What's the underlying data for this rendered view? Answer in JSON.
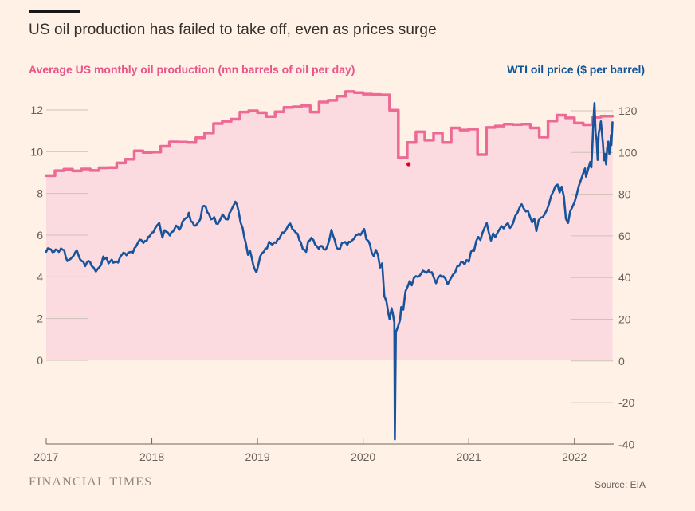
{
  "header": {
    "title": "US oil production has failed to take off, even as prices surge"
  },
  "legend": {
    "left_label": "Average US monthly oil production (mn barrels of oil per day)",
    "right_label": "WTI oil price ($ per barrel)"
  },
  "footer": {
    "brand": "FINANCIAL TIMES",
    "source_prefix": "Source:",
    "source_link": "EIA"
  },
  "colors": {
    "background": "#fff1e5",
    "title_text": "#33302e",
    "production_line": "#ed6a95",
    "production_fill": "#fbdbe0",
    "production_label": "#ea5488",
    "wti_line": "#17549c",
    "wti_label": "#0d549b",
    "axis_text": "#66605b",
    "axis_line": "#6e6860",
    "tick_stub": "#cdc2b6",
    "annotation_dot": "#e00014"
  },
  "chart_data": {
    "type": "line",
    "title": "US oil production has failed to take off, even as prices surge",
    "legend_position": "top",
    "grid": "edge-stubs-only",
    "x_axis": {
      "years": [
        2017,
        2018,
        2019,
        2020,
        2021,
        2022
      ],
      "range": [
        2017,
        2022.37
      ]
    },
    "y_axis_left": {
      "label": "Average US monthly oil production (mn barrels of oil per day)",
      "ticks": [
        0,
        2,
        4,
        6,
        8,
        10,
        12
      ],
      "range": [
        0,
        12.9
      ]
    },
    "y_axis_right": {
      "label": "WTI oil price ($ per barrel)",
      "ticks": [
        -40,
        -20,
        0,
        20,
        40,
        60,
        80,
        100,
        120
      ],
      "range": [
        -40,
        124
      ]
    },
    "annotation_dot": {
      "x": 2020.43,
      "value_left_axis": 9.4
    },
    "series": [
      {
        "name": "Average US monthly oil production (mn barrels of oil per day)",
        "type": "step-area",
        "axis": "left",
        "start_year": 2017,
        "end_year_fraction": 2022.36,
        "monthly_values": [
          8.85,
          9.09,
          9.16,
          9.08,
          9.17,
          9.1,
          9.23,
          9.24,
          9.46,
          9.64,
          10.04,
          9.96,
          9.98,
          10.26,
          10.47,
          10.46,
          10.44,
          10.67,
          10.9,
          11.35,
          11.46,
          11.56,
          11.9,
          11.96,
          11.87,
          11.68,
          11.91,
          12.12,
          12.15,
          12.2,
          11.9,
          12.38,
          12.46,
          12.66,
          12.88,
          12.83,
          12.76,
          12.74,
          12.72,
          11.99,
          9.71,
          10.44,
          10.95,
          10.55,
          10.9,
          10.44,
          11.14,
          11.04,
          11.08,
          9.86,
          11.16,
          11.23,
          11.32,
          11.3,
          11.32,
          11.14,
          10.7,
          11.47,
          11.75,
          11.62,
          11.37,
          11.29,
          11.65,
          11.7,
          11.7
        ]
      },
      {
        "name": "WTI oil price ($ per barrel)",
        "type": "line",
        "axis": "right",
        "points": [
          [
            2017.0,
            52.4
          ],
          [
            2017.03,
            53.8
          ],
          [
            2017.06,
            52.2
          ],
          [
            2017.09,
            53.5
          ],
          [
            2017.12,
            52.3
          ],
          [
            2017.14,
            54.0
          ],
          [
            2017.17,
            53.2
          ],
          [
            2017.2,
            47.9
          ],
          [
            2017.23,
            48.9
          ],
          [
            2017.26,
            50.6
          ],
          [
            2017.29,
            53.1
          ],
          [
            2017.32,
            48.8
          ],
          [
            2017.35,
            47.7
          ],
          [
            2017.37,
            45.5
          ],
          [
            2017.4,
            48.0
          ],
          [
            2017.43,
            45.6
          ],
          [
            2017.45,
            44.7
          ],
          [
            2017.47,
            42.9
          ],
          [
            2017.49,
            44.3
          ],
          [
            2017.52,
            46.1
          ],
          [
            2017.54,
            50.1
          ],
          [
            2017.57,
            49.6
          ],
          [
            2017.59,
            46.8
          ],
          [
            2017.62,
            48.6
          ],
          [
            2017.65,
            47.4
          ],
          [
            2017.68,
            47.2
          ],
          [
            2017.7,
            49.9
          ],
          [
            2017.73,
            51.9
          ],
          [
            2017.76,
            50.7
          ],
          [
            2017.79,
            52.2
          ],
          [
            2017.82,
            51.9
          ],
          [
            2017.85,
            54.9
          ],
          [
            2017.87,
            56.9
          ],
          [
            2017.9,
            58.0
          ],
          [
            2017.92,
            56.6
          ],
          [
            2017.95,
            57.4
          ],
          [
            2017.98,
            59.9
          ],
          [
            2018.0,
            61.6
          ],
          [
            2018.03,
            63.6
          ],
          [
            2018.07,
            66.2
          ],
          [
            2018.1,
            59.2
          ],
          [
            2018.12,
            62.7
          ],
          [
            2018.15,
            61.7
          ],
          [
            2018.17,
            60.2
          ],
          [
            2018.2,
            62.1
          ],
          [
            2018.23,
            64.9
          ],
          [
            2018.26,
            62.9
          ],
          [
            2018.29,
            66.8
          ],
          [
            2018.32,
            68.5
          ],
          [
            2018.35,
            71.1
          ],
          [
            2018.37,
            66.9
          ],
          [
            2018.4,
            64.9
          ],
          [
            2018.43,
            65.9
          ],
          [
            2018.46,
            68.2
          ],
          [
            2018.48,
            74.1
          ],
          [
            2018.51,
            73.9
          ],
          [
            2018.54,
            70.5
          ],
          [
            2018.56,
            67.9
          ],
          [
            2018.59,
            69.0
          ],
          [
            2018.61,
            65.9
          ],
          [
            2018.64,
            67.1
          ],
          [
            2018.67,
            70.3
          ],
          [
            2018.7,
            68.0
          ],
          [
            2018.72,
            67.9
          ],
          [
            2018.75,
            72.2
          ],
          [
            2018.77,
            74.3
          ],
          [
            2018.79,
            76.4
          ],
          [
            2018.82,
            72.1
          ],
          [
            2018.84,
            66.4
          ],
          [
            2018.86,
            63.7
          ],
          [
            2018.89,
            56.4
          ],
          [
            2018.91,
            50.9
          ],
          [
            2018.93,
            52.7
          ],
          [
            2018.96,
            45.9
          ],
          [
            2018.99,
            42.5
          ],
          [
            2019.01,
            46.5
          ],
          [
            2019.04,
            51.6
          ],
          [
            2019.06,
            52.4
          ],
          [
            2019.09,
            54.0
          ],
          [
            2019.11,
            57.2
          ],
          [
            2019.14,
            55.8
          ],
          [
            2019.16,
            56.9
          ],
          [
            2019.19,
            58.3
          ],
          [
            2019.22,
            60.1
          ],
          [
            2019.25,
            61.6
          ],
          [
            2019.28,
            63.9
          ],
          [
            2019.31,
            65.9
          ],
          [
            2019.33,
            63.3
          ],
          [
            2019.36,
            61.7
          ],
          [
            2019.38,
            61.0
          ],
          [
            2019.41,
            56.9
          ],
          [
            2019.43,
            53.5
          ],
          [
            2019.46,
            52.3
          ],
          [
            2019.48,
            57.4
          ],
          [
            2019.51,
            59.1
          ],
          [
            2019.53,
            57.9
          ],
          [
            2019.56,
            55.2
          ],
          [
            2019.58,
            53.8
          ],
          [
            2019.61,
            55.1
          ],
          [
            2019.63,
            53.5
          ],
          [
            2019.66,
            54.9
          ],
          [
            2019.68,
            58.1
          ],
          [
            2019.7,
            62.9
          ],
          [
            2019.73,
            58.1
          ],
          [
            2019.75,
            54.2
          ],
          [
            2019.78,
            53.8
          ],
          [
            2019.8,
            56.7
          ],
          [
            2019.83,
            57.1
          ],
          [
            2019.85,
            55.7
          ],
          [
            2019.88,
            57.0
          ],
          [
            2019.9,
            58.1
          ],
          [
            2019.93,
            60.4
          ],
          [
            2019.96,
            61.1
          ],
          [
            2019.99,
            61.7
          ],
          [
            2020.01,
            63.3
          ],
          [
            2020.03,
            58.4
          ],
          [
            2020.05,
            57.5
          ],
          [
            2020.08,
            52.1
          ],
          [
            2020.1,
            50.3
          ],
          [
            2020.12,
            53.3
          ],
          [
            2020.14,
            50.9
          ],
          [
            2020.16,
            44.8
          ],
          [
            2020.18,
            46.8
          ],
          [
            2020.2,
            31.1
          ],
          [
            2020.22,
            28.7
          ],
          [
            2020.24,
            22.4
          ],
          [
            2020.25,
            20.1
          ],
          [
            2020.27,
            25.3
          ],
          [
            2020.28,
            22.8
          ],
          [
            2020.295,
            18.3
          ],
          [
            2020.3,
            -37.6
          ],
          [
            2020.31,
            13.8
          ],
          [
            2020.33,
            16.5
          ],
          [
            2020.35,
            19.7
          ],
          [
            2020.36,
            25.8
          ],
          [
            2020.38,
            24.6
          ],
          [
            2020.4,
            33.3
          ],
          [
            2020.42,
            35.5
          ],
          [
            2020.44,
            38.3
          ],
          [
            2020.46,
            36.3
          ],
          [
            2020.48,
            39.8
          ],
          [
            2020.5,
            40.7
          ],
          [
            2020.53,
            40.6
          ],
          [
            2020.55,
            41.9
          ],
          [
            2020.58,
            42.9
          ],
          [
            2020.6,
            42.3
          ],
          [
            2020.62,
            43.4
          ],
          [
            2020.65,
            42.6
          ],
          [
            2020.67,
            39.8
          ],
          [
            2020.69,
            37.3
          ],
          [
            2020.71,
            40.0
          ],
          [
            2020.73,
            41.0
          ],
          [
            2020.76,
            40.6
          ],
          [
            2020.78,
            39.4
          ],
          [
            2020.8,
            36.8
          ],
          [
            2020.82,
            38.7
          ],
          [
            2020.85,
            41.4
          ],
          [
            2020.87,
            42.4
          ],
          [
            2020.89,
            45.3
          ],
          [
            2020.91,
            45.7
          ],
          [
            2020.94,
            47.6
          ],
          [
            2020.96,
            46.3
          ],
          [
            2020.98,
            48.4
          ],
          [
            2021.0,
            47.6
          ],
          [
            2021.02,
            52.3
          ],
          [
            2021.05,
            52.8
          ],
          [
            2021.07,
            57.5
          ],
          [
            2021.09,
            59.5
          ],
          [
            2021.11,
            58.0
          ],
          [
            2021.13,
            61.5
          ],
          [
            2021.15,
            64.0
          ],
          [
            2021.17,
            66.1
          ],
          [
            2021.19,
            61.4
          ],
          [
            2021.21,
            57.8
          ],
          [
            2021.23,
            61.2
          ],
          [
            2021.25,
            59.3
          ],
          [
            2021.27,
            61.4
          ],
          [
            2021.29,
            63.1
          ],
          [
            2021.31,
            64.7
          ],
          [
            2021.33,
            63.6
          ],
          [
            2021.35,
            65.2
          ],
          [
            2021.37,
            66.1
          ],
          [
            2021.39,
            63.8
          ],
          [
            2021.42,
            66.3
          ],
          [
            2021.44,
            69.6
          ],
          [
            2021.46,
            71.0
          ],
          [
            2021.48,
            73.5
          ],
          [
            2021.5,
            75.2
          ],
          [
            2021.52,
            73.1
          ],
          [
            2021.54,
            71.7
          ],
          [
            2021.56,
            72.0
          ],
          [
            2021.58,
            69.0
          ],
          [
            2021.6,
            66.5
          ],
          [
            2021.62,
            68.3
          ],
          [
            2021.64,
            62.3
          ],
          [
            2021.66,
            67.4
          ],
          [
            2021.68,
            68.7
          ],
          [
            2021.7,
            69.0
          ],
          [
            2021.72,
            70.5
          ],
          [
            2021.74,
            72.6
          ],
          [
            2021.76,
            75.4
          ],
          [
            2021.78,
            79.3
          ],
          [
            2021.8,
            81.3
          ],
          [
            2021.82,
            83.9
          ],
          [
            2021.84,
            84.6
          ],
          [
            2021.86,
            80.8
          ],
          [
            2021.88,
            83.6
          ],
          [
            2021.9,
            78.8
          ],
          [
            2021.92,
            68.2
          ],
          [
            2021.94,
            66.2
          ],
          [
            2021.96,
            71.7
          ],
          [
            2021.98,
            73.8
          ],
          [
            2022.0,
            76.1
          ],
          [
            2022.02,
            79.5
          ],
          [
            2022.04,
            83.8
          ],
          [
            2022.06,
            86.6
          ],
          [
            2022.08,
            89.7
          ],
          [
            2022.1,
            92.3
          ],
          [
            2022.11,
            88.4
          ],
          [
            2022.13,
            92.1
          ],
          [
            2022.15,
            95.5
          ],
          [
            2022.16,
            92.8
          ],
          [
            2022.17,
            103.4
          ],
          [
            2022.18,
            115.7
          ],
          [
            2022.19,
            123.7
          ],
          [
            2022.2,
            109.3
          ],
          [
            2022.21,
            106.0
          ],
          [
            2022.22,
            96.4
          ],
          [
            2022.23,
            109.3
          ],
          [
            2022.24,
            112.1
          ],
          [
            2022.25,
            114.9
          ],
          [
            2022.26,
            109.6
          ],
          [
            2022.27,
            104.2
          ],
          [
            2022.28,
            96.2
          ],
          [
            2022.29,
            99.3
          ],
          [
            2022.3,
            94.3
          ],
          [
            2022.31,
            102.1
          ],
          [
            2022.32,
            105.2
          ],
          [
            2022.33,
            99.4
          ],
          [
            2022.34,
            101.8
          ],
          [
            2022.345,
            108.3
          ],
          [
            2022.35,
            103.5
          ],
          [
            2022.36,
            114.5
          ]
        ]
      }
    ]
  }
}
